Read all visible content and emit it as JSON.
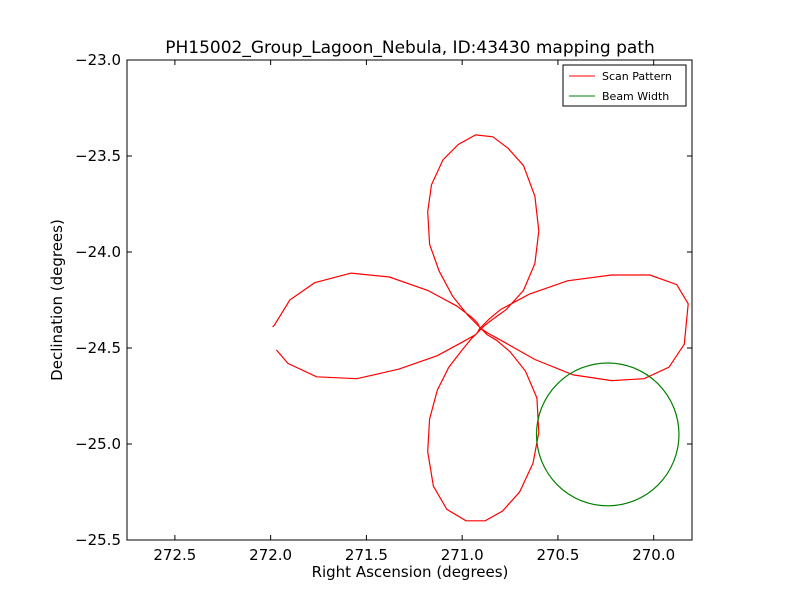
{
  "chart_data": {
    "type": "line",
    "title": "PH15002_Group_Lagoon_Nebula, ID:43430 mapping path",
    "xlabel": "Right Ascension (degrees)",
    "ylabel": "Declination (degrees)",
    "xlim": [
      272.75,
      269.8
    ],
    "ylim": [
      -25.5,
      -23.0
    ],
    "x_ticks": [
      272.5,
      272.0,
      271.5,
      271.0,
      270.5,
      270.0
    ],
    "x_tick_labels": [
      "272.5",
      "272.0",
      "271.5",
      "271.0",
      "270.5",
      "270.0"
    ],
    "y_ticks": [
      -23.0,
      -23.5,
      -24.0,
      -24.5,
      -25.0,
      -25.5
    ],
    "y_tick_labels": [
      "−23.0",
      "−23.5",
      "−24.0",
      "−24.5",
      "−25.0",
      "−25.5"
    ],
    "grid": false,
    "legend_position": "top-right",
    "series": [
      {
        "name": "Scan Pattern",
        "color": "#ff0000",
        "x": [
          271.99,
          271.98,
          271.9,
          271.77,
          271.58,
          271.38,
          271.18,
          271.03,
          270.95,
          270.92,
          270.91,
          270.9,
          270.89,
          270.87,
          270.82,
          270.75,
          270.67,
          270.61,
          270.6,
          270.63,
          270.7,
          270.79,
          270.88,
          270.98,
          271.08,
          271.15,
          271.18,
          271.17,
          271.13,
          271.07,
          271.0,
          270.95,
          270.92,
          270.91,
          270.9,
          270.89,
          270.86,
          270.8,
          270.65,
          270.45,
          270.22,
          270.02,
          269.88,
          269.82,
          269.84,
          269.92,
          270.05,
          270.22,
          270.42,
          270.62,
          270.78,
          270.87,
          270.9,
          270.91,
          270.92,
          270.97,
          271.05,
          271.12,
          271.17,
          271.18,
          271.16,
          271.1,
          271.02,
          270.93,
          270.84,
          270.76,
          270.68,
          270.62,
          270.6,
          270.62,
          270.68,
          270.77,
          270.84,
          270.88,
          270.9,
          270.91,
          270.93,
          271.0,
          271.13,
          271.33,
          271.55,
          271.76,
          271.91,
          271.97
        ],
        "y": [
          -24.39,
          -24.38,
          -24.25,
          -24.16,
          -24.11,
          -24.13,
          -24.2,
          -24.28,
          -24.34,
          -24.37,
          -24.39,
          -24.4,
          -24.41,
          -24.43,
          -24.46,
          -24.52,
          -24.62,
          -24.76,
          -24.94,
          -25.1,
          -25.25,
          -25.35,
          -25.4,
          -25.4,
          -25.34,
          -25.22,
          -25.04,
          -24.87,
          -24.72,
          -24.6,
          -24.51,
          -24.45,
          -24.42,
          -24.4,
          -24.39,
          -24.38,
          -24.35,
          -24.3,
          -24.22,
          -24.15,
          -24.12,
          -24.12,
          -24.17,
          -24.27,
          -24.48,
          -24.6,
          -24.66,
          -24.67,
          -24.64,
          -24.56,
          -24.47,
          -24.42,
          -24.4,
          -24.39,
          -24.38,
          -24.33,
          -24.23,
          -24.1,
          -23.96,
          -23.79,
          -23.65,
          -23.52,
          -23.44,
          -23.39,
          -23.4,
          -23.46,
          -23.55,
          -23.71,
          -23.89,
          -24.06,
          -24.2,
          -24.3,
          -24.35,
          -24.38,
          -24.4,
          -24.41,
          -24.43,
          -24.47,
          -24.54,
          -24.61,
          -24.66,
          -24.65,
          -24.58,
          -24.51
        ]
      },
      {
        "name": "Beam Width",
        "color": "#008000",
        "center": [
          270.24,
          -24.95
        ],
        "radius": 0.372
      }
    ]
  }
}
